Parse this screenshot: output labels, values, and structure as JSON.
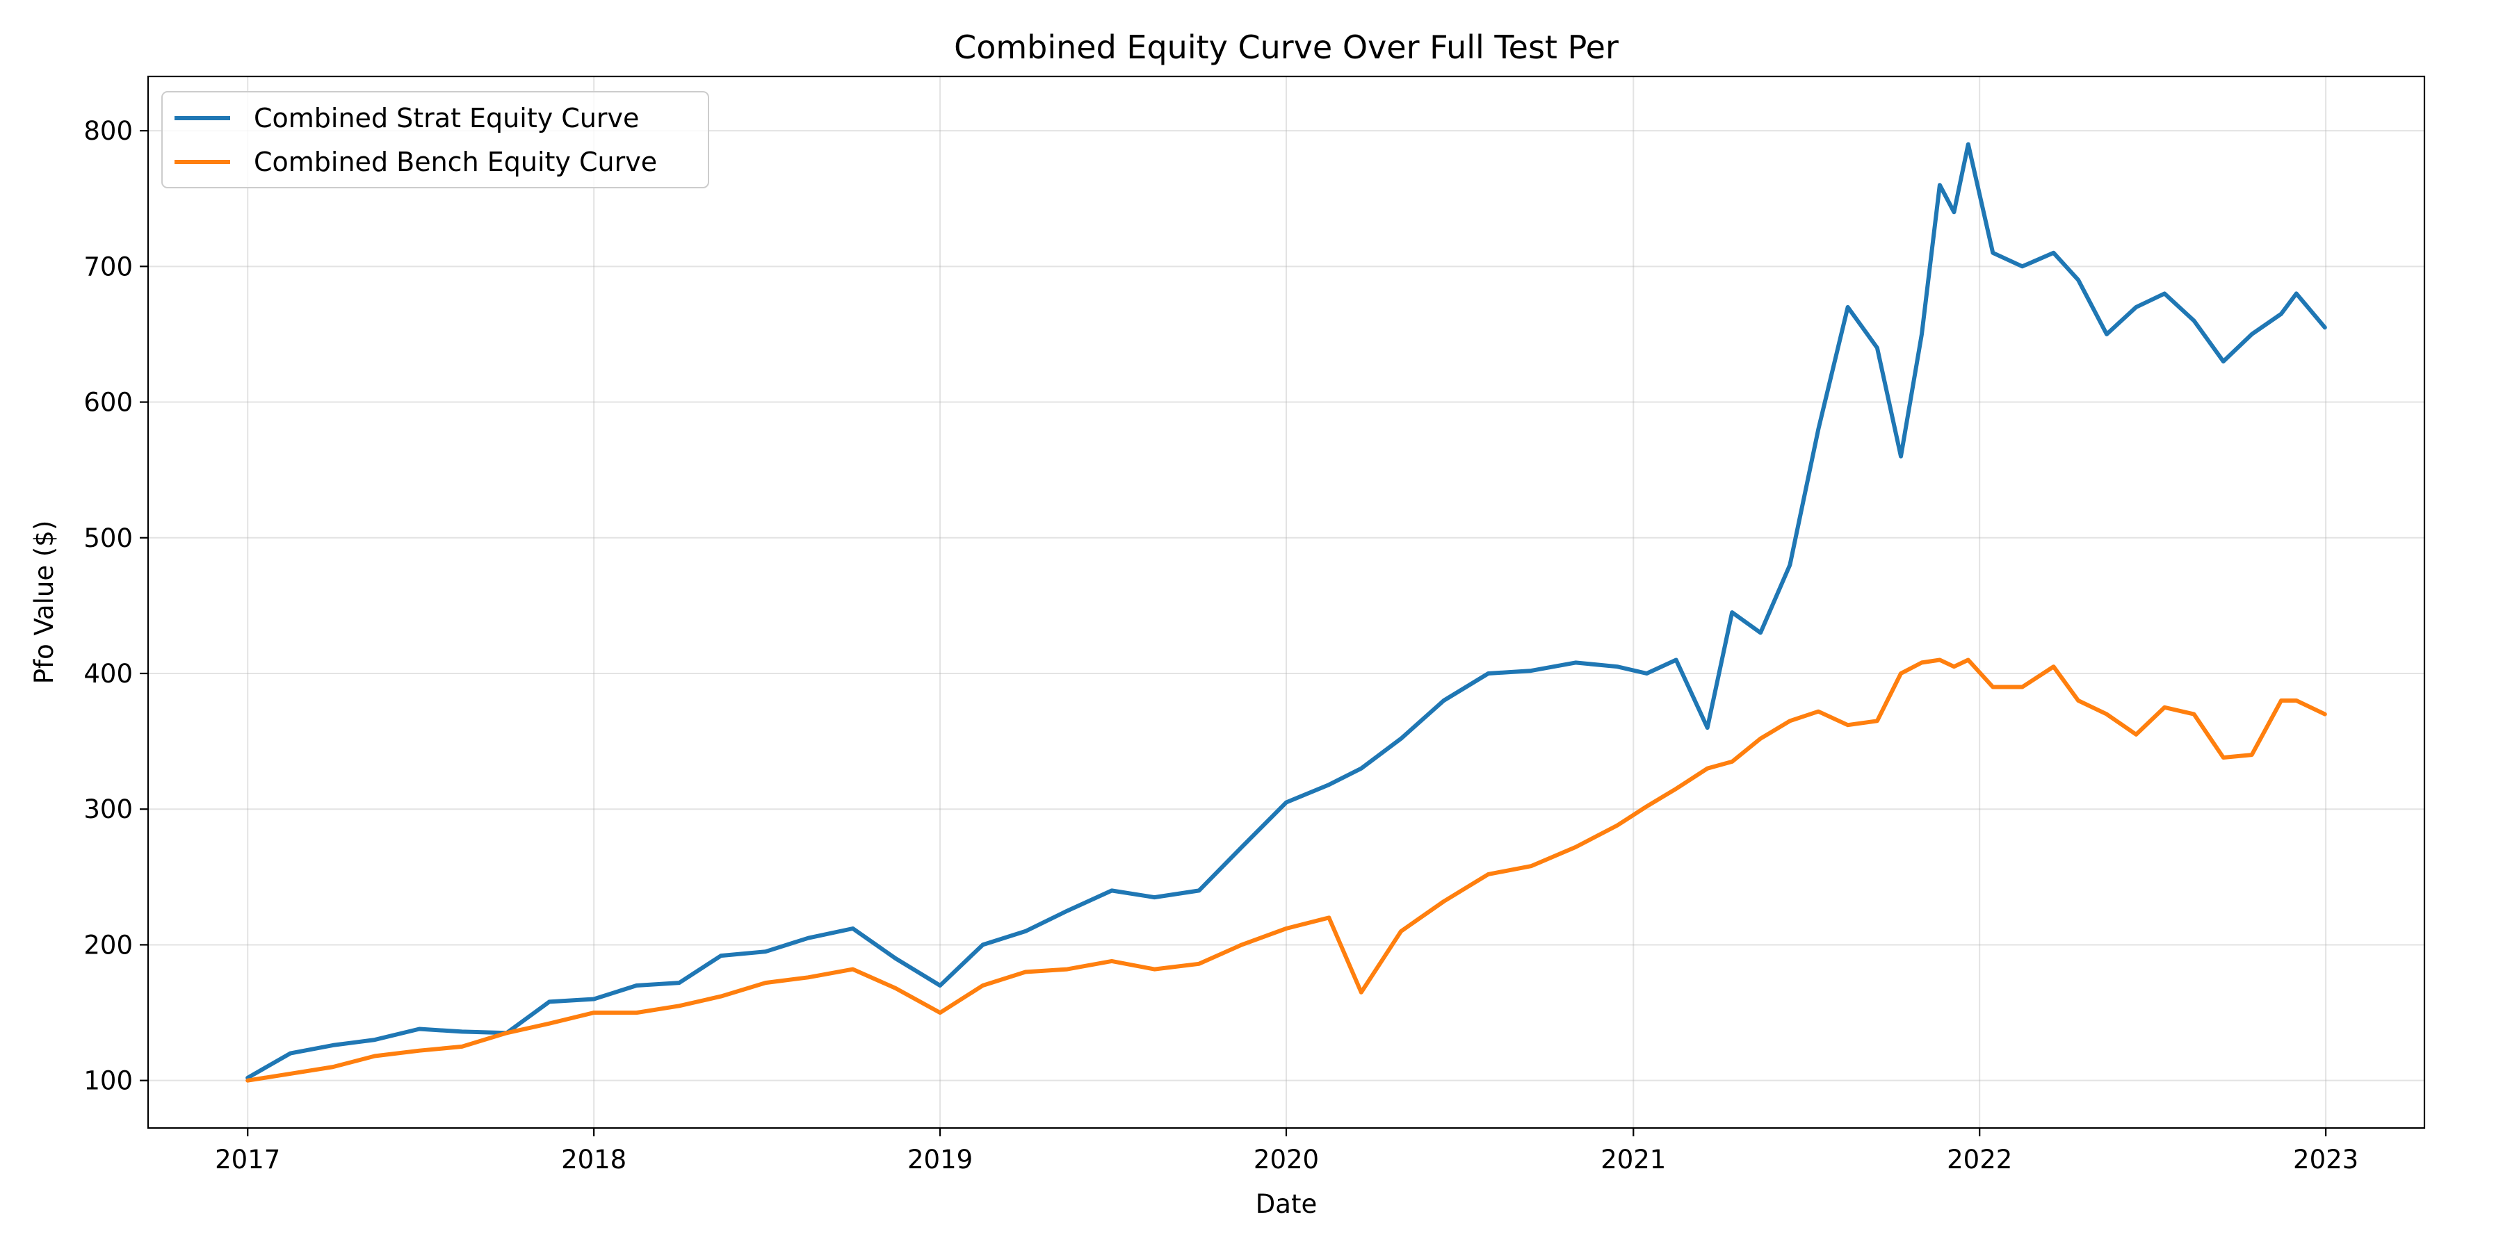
{
  "chart_data": {
    "type": "line",
    "title": "Combined Equity Curve Over Full Test Per",
    "xlabel": "Date",
    "ylabel": "Pfo Value ($)",
    "x_axis": "date",
    "xlim": [
      "2016-09-18",
      "2023-04-15"
    ],
    "ylim": [
      65,
      840
    ],
    "x_ticks": [
      "2017",
      "2018",
      "2019",
      "2020",
      "2021",
      "2022",
      "2023"
    ],
    "y_ticks": [
      100,
      200,
      300,
      400,
      500,
      600,
      700,
      800
    ],
    "grid": true,
    "legend_position": "top-left",
    "x": [
      "2017-01-01",
      "2017-02-15",
      "2017-04-01",
      "2017-05-15",
      "2017-07-01",
      "2017-08-15",
      "2017-10-01",
      "2017-11-15",
      "2018-01-01",
      "2018-02-15",
      "2018-04-01",
      "2018-05-15",
      "2018-07-01",
      "2018-08-15",
      "2018-10-01",
      "2018-11-15",
      "2019-01-01",
      "2019-02-15",
      "2019-04-01",
      "2019-05-15",
      "2019-07-01",
      "2019-08-15",
      "2019-10-01",
      "2019-11-15",
      "2020-01-01",
      "2020-02-15",
      "2020-03-20",
      "2020-05-01",
      "2020-06-15",
      "2020-08-01",
      "2020-09-15",
      "2020-11-01",
      "2020-12-15",
      "2021-01-15",
      "2021-02-15",
      "2021-03-20",
      "2021-04-15",
      "2021-05-15",
      "2021-06-15",
      "2021-07-15",
      "2021-08-15",
      "2021-09-15",
      "2021-10-10",
      "2021-11-01",
      "2021-11-20",
      "2021-12-05",
      "2021-12-20",
      "2022-01-15",
      "2022-02-15",
      "2022-03-20",
      "2022-04-15",
      "2022-05-15",
      "2022-06-15",
      "2022-07-15",
      "2022-08-15",
      "2022-09-15",
      "2022-10-15",
      "2022-11-15",
      "2022-12-01",
      "2022-12-31"
    ],
    "series": [
      {
        "name": "Combined Strat Equity Curve",
        "color": "#1f77b4",
        "values": [
          102,
          120,
          126,
          130,
          138,
          136,
          135,
          158,
          160,
          170,
          172,
          192,
          195,
          205,
          212,
          190,
          170,
          200,
          210,
          225,
          240,
          235,
          240,
          272,
          305,
          318,
          330,
          352,
          380,
          400,
          402,
          408,
          405,
          400,
          410,
          360,
          445,
          430,
          480,
          580,
          670,
          640,
          560,
          650,
          760,
          740,
          790,
          710,
          700,
          710,
          690,
          650,
          670,
          680,
          660,
          630,
          650,
          665,
          680,
          655
        ]
      },
      {
        "name": "Combined Bench Equity Curve",
        "color": "#ff7f0e",
        "values": [
          100,
          105,
          110,
          118,
          122,
          125,
          135,
          142,
          150,
          150,
          155,
          162,
          172,
          176,
          182,
          168,
          150,
          170,
          180,
          182,
          188,
          182,
          186,
          200,
          212,
          220,
          165,
          210,
          232,
          252,
          258,
          272,
          288,
          302,
          315,
          330,
          335,
          352,
          365,
          372,
          362,
          365,
          400,
          408,
          410,
          405,
          410,
          390,
          390,
          405,
          380,
          370,
          355,
          375,
          370,
          338,
          340,
          380,
          380,
          370
        ]
      }
    ]
  }
}
